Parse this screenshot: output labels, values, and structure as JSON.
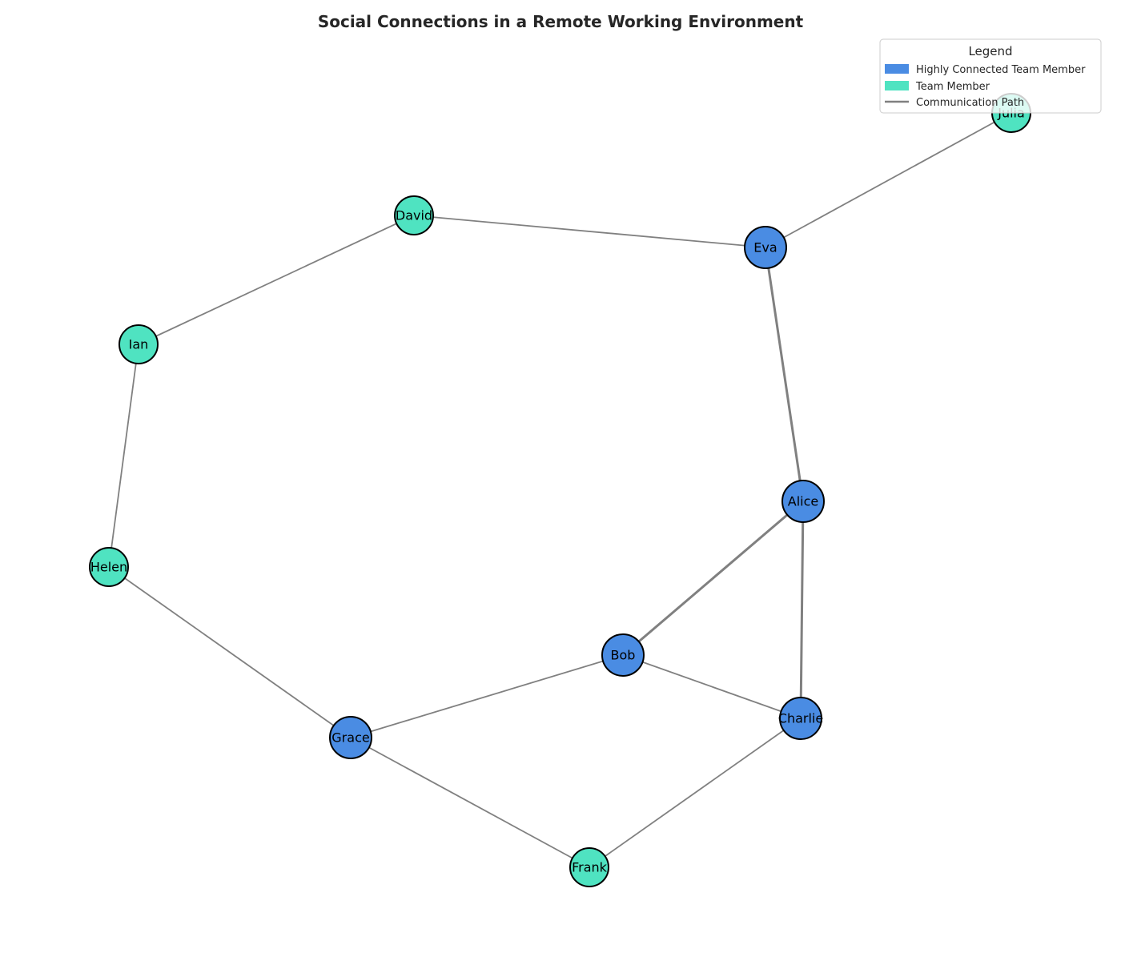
{
  "title": "Social Connections in a Remote Working Environment",
  "colors": {
    "highly_connected": "#4a8ce3",
    "team_member": "#4fe3c1",
    "edge": "#808080",
    "outline": "#000000"
  },
  "legend": {
    "title": "Legend",
    "items": [
      {
        "label": "Highly Connected Team Member",
        "kind": "patch",
        "group": "highly_connected"
      },
      {
        "label": "Team Member",
        "kind": "patch",
        "group": "team_member"
      },
      {
        "label": "Communication Path",
        "kind": "line",
        "group": "edge"
      }
    ]
  },
  "nodes": [
    {
      "id": "Alice",
      "label": "Alice",
      "group": "highly_connected"
    },
    {
      "id": "Bob",
      "label": "Bob",
      "group": "highly_connected"
    },
    {
      "id": "Charlie",
      "label": "Charlie",
      "group": "highly_connected"
    },
    {
      "id": "David",
      "label": "David",
      "group": "team_member"
    },
    {
      "id": "Eva",
      "label": "Eva",
      "group": "highly_connected"
    },
    {
      "id": "Frank",
      "label": "Frank",
      "group": "team_member"
    },
    {
      "id": "Grace",
      "label": "Grace",
      "group": "highly_connected"
    },
    {
      "id": "Helen",
      "label": "Helen",
      "group": "team_member"
    },
    {
      "id": "Ian",
      "label": "Ian",
      "group": "team_member"
    },
    {
      "id": "Julia",
      "label": "Julia",
      "group": "team_member"
    }
  ],
  "edges": [
    {
      "source": "Eva",
      "target": "Julia",
      "weight": 1
    },
    {
      "source": "David",
      "target": "Eva",
      "weight": 1
    },
    {
      "source": "David",
      "target": "Ian",
      "weight": 1
    },
    {
      "source": "Ian",
      "target": "Helen",
      "weight": 1
    },
    {
      "source": "Helen",
      "target": "Grace",
      "weight": 1
    },
    {
      "source": "Eva",
      "target": "Alice",
      "weight": 2
    },
    {
      "source": "Alice",
      "target": "Bob",
      "weight": 2
    },
    {
      "source": "Alice",
      "target": "Charlie",
      "weight": 2
    },
    {
      "source": "Bob",
      "target": "Charlie",
      "weight": 1
    },
    {
      "source": "Bob",
      "target": "Grace",
      "weight": 1
    },
    {
      "source": "Grace",
      "target": "Frank",
      "weight": 1
    },
    {
      "source": "Charlie",
      "target": "Frank",
      "weight": 1
    }
  ]
}
